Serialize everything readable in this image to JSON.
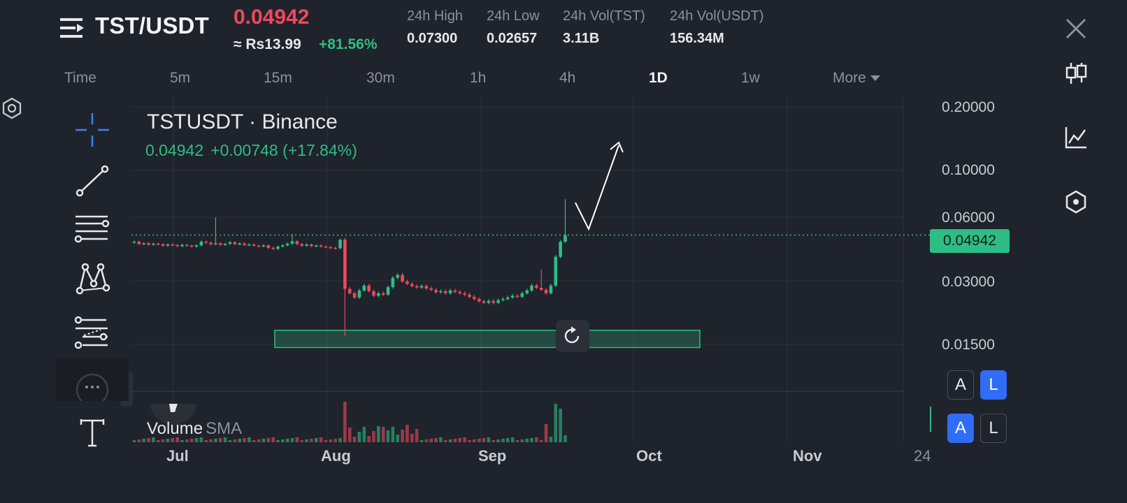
{
  "header": {
    "pair": "TST/USDT",
    "last_price": "0.04942",
    "fiat_price": "≈ Rs13.99",
    "change_pct": "+81.56%",
    "stats": [
      {
        "label": "24h High",
        "value": "0.07300"
      },
      {
        "label": "24h Low",
        "value": "0.02657"
      },
      {
        "label": "24h Vol(TST)",
        "value": "3.11B"
      },
      {
        "label": "24h Vol(USDT)",
        "value": "156.34M"
      }
    ]
  },
  "timeframes": [
    "Time",
    "5m",
    "15m",
    "30m",
    "1h",
    "4h",
    "1D",
    "1w",
    "More"
  ],
  "active_timeframe": "1D",
  "side_icons": [
    "candlestick-icon",
    "line-chart-icon",
    "hexagon-icon"
  ],
  "tools": [
    "crosshair-icon",
    "trend-line-icon",
    "horizontal-lines-icon",
    "pattern-icon",
    "fib-icon",
    "path-icon",
    "text-icon"
  ],
  "chart": {
    "symbol": "TSTUSDT · Binance",
    "ohlc_price": "0.04942",
    "ohlc_change": "+0.00748 (+17.84%)",
    "price_tag": "0.04942",
    "volume_label": "Volume",
    "volume_sma": "SMA",
    "scale_buttons_top": [
      "A",
      "L"
    ],
    "scale_buttons_bottom": [
      "A",
      "L"
    ],
    "colors": {
      "up": "#2ebd85",
      "down": "#f0475c",
      "grid": "#2c313a",
      "zone": "#2ebd85"
    }
  },
  "chart_data": {
    "type": "candlestick",
    "yaxis": {
      "scale": "log",
      "ticks": [
        "0.20000",
        "0.10000",
        "0.06000",
        "0.03000",
        "0.01500"
      ]
    },
    "xaxis": {
      "ticks": [
        "Jul",
        "Aug",
        "Sep",
        "Oct",
        "Nov",
        "24"
      ]
    },
    "last_price": 0.04942
  }
}
